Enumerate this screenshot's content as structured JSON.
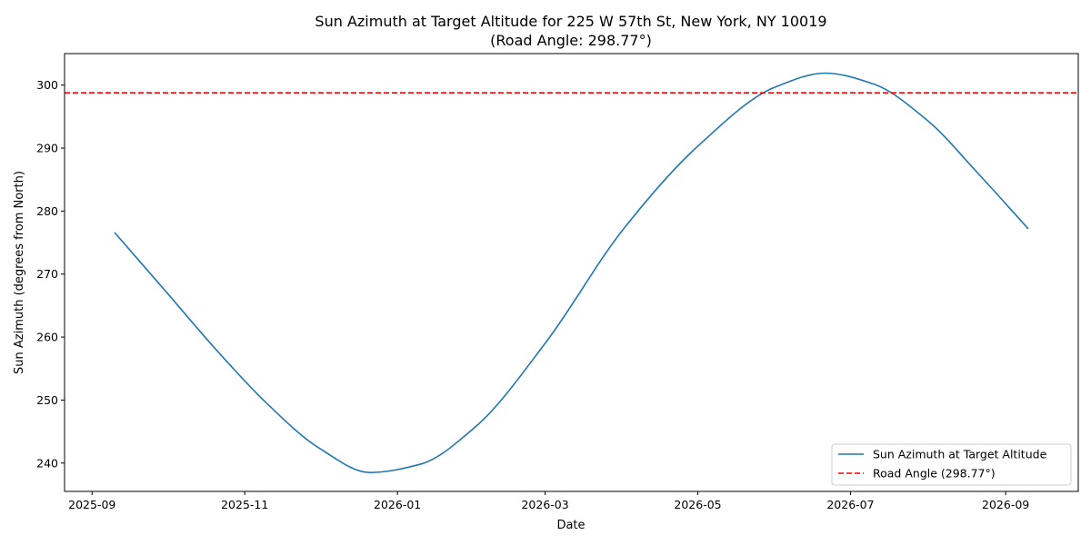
{
  "chart_data": {
    "type": "line",
    "title": "Sun Azimuth at Target Altitude for 225 W 57th St, New York, NY 10019",
    "subtitle": "(Road Angle: 298.77°)",
    "xlabel": "Date",
    "ylabel": "Sun Azimuth (degrees from North)",
    "xlim": [
      "2025-08-21",
      "2026-09-30"
    ],
    "ylim": [
      235.5,
      305.0
    ],
    "x_ticks": [
      "2025-09",
      "2025-11",
      "2026-01",
      "2026-03",
      "2026-05",
      "2026-07",
      "2026-09"
    ],
    "y_ticks": [
      240,
      250,
      260,
      270,
      280,
      290,
      300
    ],
    "grid": false,
    "legend_position": "bottom-right",
    "series": [
      {
        "name": "Sun Azimuth at Target Altitude",
        "color": "#1f77b4",
        "style": "solid",
        "x": [
          "2025-09-10",
          "2025-10-01",
          "2025-10-21",
          "2025-11-10",
          "2025-12-01",
          "2025-12-21",
          "2026-01-10",
          "2026-02-01",
          "2026-03-01",
          "2026-04-01",
          "2026-05-01",
          "2026-06-01",
          "2026-06-21",
          "2026-07-10",
          "2026-08-01",
          "2026-08-20",
          "2026-09-10"
        ],
        "y": [
          276.6,
          267.0,
          257.8,
          249.4,
          242.3,
          238.5,
          239.8,
          245.7,
          259.0,
          277.0,
          290.3,
          299.7,
          301.9,
          300.2,
          294.3,
          286.4,
          277.2
        ]
      },
      {
        "name": "Road Angle (298.77°)",
        "color": "#ff0000",
        "style": "dashed",
        "y_constant": 298.77
      }
    ]
  }
}
